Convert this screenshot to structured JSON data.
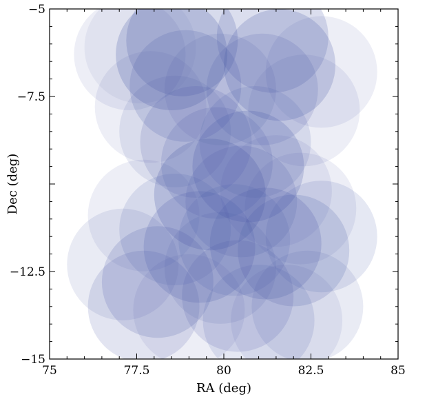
{
  "chart_data": {
    "type": "scatter",
    "title": "",
    "xlabel": "RA (deg)",
    "ylabel": "Dec (deg)",
    "xlim": [
      75,
      85
    ],
    "ylim": [
      -15,
      -5
    ],
    "grid": false,
    "marker": "circle",
    "marker_radius_deg": 1.6,
    "marker_color": "#4a5aa8",
    "x_ticks": [
      75,
      77.5,
      80,
      82.5,
      85
    ],
    "x_tick_labels": [
      "75",
      "77.5",
      "80",
      "82.5",
      "85"
    ],
    "y_ticks": [
      -5,
      -7.5,
      -12.5,
      -15
    ],
    "y_tick_labels": [
      "−5",
      "−7.5",
      "−12.5",
      "−15"
    ],
    "points": [
      {
        "x": 77.3,
        "y": -6.3,
        "alpha": 0.1
      },
      {
        "x": 77.6,
        "y": -6.1,
        "alpha": 0.08
      },
      {
        "x": 78.8,
        "y": -5.9,
        "alpha": 0.22
      },
      {
        "x": 81.4,
        "y": -5.8,
        "alpha": 0.2
      },
      {
        "x": 82.8,
        "y": -6.8,
        "alpha": 0.1
      },
      {
        "x": 78.5,
        "y": -6.3,
        "alpha": 0.24
      },
      {
        "x": 81.6,
        "y": -6.6,
        "alpha": 0.22
      },
      {
        "x": 79.9,
        "y": -7.3,
        "alpha": 0.12
      },
      {
        "x": 78.9,
        "y": -7.2,
        "alpha": 0.18
      },
      {
        "x": 81.1,
        "y": -7.3,
        "alpha": 0.16
      },
      {
        "x": 77.9,
        "y": -7.8,
        "alpha": 0.1
      },
      {
        "x": 82.3,
        "y": -7.9,
        "alpha": 0.1
      },
      {
        "x": 79.2,
        "y": -8.8,
        "alpha": 0.16
      },
      {
        "x": 80.9,
        "y": -8.8,
        "alpha": 0.14
      },
      {
        "x": 78.6,
        "y": -8.5,
        "alpha": 0.12
      },
      {
        "x": 80.7,
        "y": -9.5,
        "alpha": 0.22
      },
      {
        "x": 79.8,
        "y": -9.4,
        "alpha": 0.16
      },
      {
        "x": 79.6,
        "y": -10.3,
        "alpha": 0.24
      },
      {
        "x": 80.5,
        "y": -10.5,
        "alpha": 0.16
      },
      {
        "x": 81.5,
        "y": -10.2,
        "alpha": 0.1
      },
      {
        "x": 77.7,
        "y": -10.9,
        "alpha": 0.1
      },
      {
        "x": 82.2,
        "y": -10.7,
        "alpha": 0.1
      },
      {
        "x": 78.6,
        "y": -11.3,
        "alpha": 0.14
      },
      {
        "x": 79.3,
        "y": -11.8,
        "alpha": 0.2
      },
      {
        "x": 81.2,
        "y": -11.7,
        "alpha": 0.2
      },
      {
        "x": 82.0,
        "y": -11.9,
        "alpha": 0.18
      },
      {
        "x": 82.8,
        "y": -11.5,
        "alpha": 0.14
      },
      {
        "x": 80.3,
        "y": -11.6,
        "alpha": 0.14
      },
      {
        "x": 77.1,
        "y": -12.3,
        "alpha": 0.12
      },
      {
        "x": 78.1,
        "y": -12.8,
        "alpha": 0.18
      },
      {
        "x": 77.7,
        "y": -13.5,
        "alpha": 0.16
      },
      {
        "x": 80.4,
        "y": -13.2,
        "alpha": 0.16
      },
      {
        "x": 81.0,
        "y": -13.9,
        "alpha": 0.14
      },
      {
        "x": 82.4,
        "y": -13.5,
        "alpha": 0.12
      },
      {
        "x": 79.0,
        "y": -13.6,
        "alpha": 0.1
      },
      {
        "x": 81.8,
        "y": -13.9,
        "alpha": 0.1
      },
      {
        "x": 79.9,
        "y": -12.4,
        "alpha": 0.12
      }
    ]
  }
}
